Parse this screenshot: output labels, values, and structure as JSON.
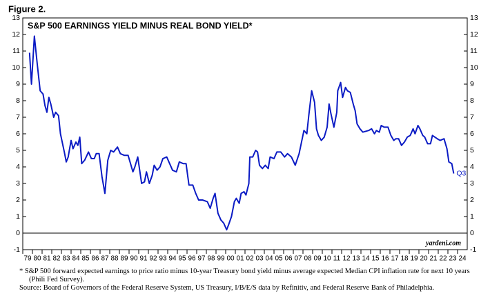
{
  "figure_label": "Figure 2.",
  "chart_data": {
    "type": "line",
    "title": "S&P 500 EARNINGS YIELD MINUS REAL BOND YIELD*",
    "annotation": "Q3",
    "watermark": "yardeni.com",
    "color": "#0b1bc4",
    "zero_line": true,
    "xlim": [
      1979,
      2025
    ],
    "ylim": [
      -1,
      13
    ],
    "yticks": [
      -1,
      0,
      1,
      2,
      3,
      4,
      5,
      6,
      7,
      8,
      9,
      10,
      11,
      12,
      13
    ],
    "xticks": [
      {
        "value": 1979,
        "label": "79"
      },
      {
        "value": 1980,
        "label": "80"
      },
      {
        "value": 1981,
        "label": "81"
      },
      {
        "value": 1982,
        "label": "82"
      },
      {
        "value": 1983,
        "label": "83"
      },
      {
        "value": 1984,
        "label": "84"
      },
      {
        "value": 1985,
        "label": "85"
      },
      {
        "value": 1986,
        "label": "86"
      },
      {
        "value": 1987,
        "label": "87"
      },
      {
        "value": 1988,
        "label": "88"
      },
      {
        "value": 1989,
        "label": "89"
      },
      {
        "value": 1990,
        "label": "90"
      },
      {
        "value": 1991,
        "label": "91"
      },
      {
        "value": 1992,
        "label": "92"
      },
      {
        "value": 1993,
        "label": "93"
      },
      {
        "value": 1994,
        "label": "94"
      },
      {
        "value": 1995,
        "label": "95"
      },
      {
        "value": 1996,
        "label": "96"
      },
      {
        "value": 1997,
        "label": "97"
      },
      {
        "value": 1998,
        "label": "98"
      },
      {
        "value": 1999,
        "label": "99"
      },
      {
        "value": 2000,
        "label": "00"
      },
      {
        "value": 2001,
        "label": "01"
      },
      {
        "value": 2002,
        "label": "02"
      },
      {
        "value": 2003,
        "label": "03"
      },
      {
        "value": 2004,
        "label": "04"
      },
      {
        "value": 2005,
        "label": "05"
      },
      {
        "value": 2006,
        "label": "06"
      },
      {
        "value": 2007,
        "label": "07"
      },
      {
        "value": 2008,
        "label": "08"
      },
      {
        "value": 2009,
        "label": "09"
      },
      {
        "value": 2010,
        "label": "10"
      },
      {
        "value": 2011,
        "label": "11"
      },
      {
        "value": 2012,
        "label": "12"
      },
      {
        "value": 2013,
        "label": "13"
      },
      {
        "value": 2014,
        "label": "14"
      },
      {
        "value": 2015,
        "label": "15"
      },
      {
        "value": 2016,
        "label": "16"
      },
      {
        "value": 2017,
        "label": "17"
      },
      {
        "value": 2018,
        "label": "18"
      },
      {
        "value": 2019,
        "label": "19"
      },
      {
        "value": 2020,
        "label": "20"
      },
      {
        "value": 2021,
        "label": "21"
      },
      {
        "value": 2022,
        "label": "22"
      },
      {
        "value": 2023,
        "label": "23"
      },
      {
        "value": 2024,
        "label": "24"
      }
    ],
    "x": [
      1979.7,
      1979.9,
      1980.2,
      1980.5,
      1980.8,
      1981.1,
      1981.3,
      1981.5,
      1981.7,
      1981.9,
      1982.2,
      1982.4,
      1982.7,
      1982.9,
      1983.3,
      1983.5,
      1983.7,
      1984.0,
      1984.2,
      1984.5,
      1984.7,
      1984.9,
      1985.1,
      1985.4,
      1985.8,
      1986.1,
      1986.4,
      1986.6,
      1986.9,
      1987.2,
      1987.5,
      1987.8,
      1988.1,
      1988.4,
      1988.8,
      1989.1,
      1989.5,
      1989.9,
      1990.4,
      1990.6,
      1990.9,
      1991.3,
      1991.6,
      1991.8,
      1992.1,
      1992.4,
      1992.6,
      1992.9,
      1993.2,
      1993.5,
      1993.9,
      1994.2,
      1994.5,
      1994.9,
      1995.2,
      1995.6,
      1995.9,
      1996.2,
      1996.6,
      1996.9,
      1997.2,
      1997.6,
      1998.1,
      1998.4,
      1998.7,
      1998.9,
      1999.2,
      1999.5,
      1999.8,
      2000.1,
      2000.3,
      2000.6,
      2000.9,
      2001.1,
      2001.4,
      2001.6,
      2001.9,
      2002.1,
      2002.4,
      2002.5,
      2002.8,
      2003.1,
      2003.3,
      2003.5,
      2003.8,
      2004.1,
      2004.4,
      2004.6,
      2005.0,
      2005.3,
      2005.7,
      2006.1,
      2006.4,
      2006.8,
      2007.2,
      2007.6,
      2008.1,
      2008.4,
      2008.6,
      2008.9,
      2009.2,
      2009.4,
      2009.6,
      2009.9,
      2010.2,
      2010.5,
      2010.7,
      2010.9,
      2011.2,
      2011.5,
      2011.6,
      2011.9,
      2012.1,
      2012.4,
      2012.6,
      2012.9,
      2013.2,
      2013.4,
      2013.6,
      2013.9,
      2014.2,
      2014.8,
      2015.1,
      2015.4,
      2015.6,
      2015.9,
      2016.1,
      2016.4,
      2016.8,
      2017.1,
      2017.4,
      2017.6,
      2017.9,
      2018.2,
      2018.5,
      2018.8,
      2019.1,
      2019.4,
      2019.6,
      2019.9,
      2020.1,
      2020.4,
      2020.6,
      2020.9,
      2021.2,
      2021.4,
      2021.9,
      2022.2,
      2022.6,
      2022.9,
      2023.1,
      2023.4,
      2023.6
    ],
    "values": [
      10.9,
      9.0,
      11.9,
      10.2,
      8.6,
      8.4,
      7.7,
      7.3,
      8.2,
      7.8,
      7.0,
      7.3,
      7.1,
      6.0,
      4.9,
      4.3,
      4.6,
      5.6,
      5.1,
      5.5,
      5.3,
      5.8,
      4.2,
      4.4,
      4.9,
      4.5,
      4.5,
      4.8,
      4.8,
      3.4,
      2.4,
      4.4,
      5.0,
      4.9,
      5.2,
      4.8,
      4.7,
      4.7,
      3.7,
      4.0,
      4.6,
      3.0,
      3.1,
      3.7,
      3.0,
      3.5,
      4.1,
      3.8,
      4.0,
      4.5,
      4.6,
      4.2,
      3.8,
      3.7,
      4.3,
      4.2,
      4.2,
      2.9,
      2.9,
      2.4,
      2.0,
      2.0,
      1.9,
      1.5,
      2.1,
      2.4,
      1.2,
      0.8,
      0.6,
      0.2,
      0.5,
      1.0,
      1.9,
      2.1,
      1.8,
      2.4,
      2.5,
      2.3,
      3.0,
      4.6,
      4.6,
      5.0,
      4.9,
      4.1,
      3.9,
      4.1,
      3.9,
      4.6,
      4.5,
      4.9,
      4.9,
      4.6,
      4.8,
      4.6,
      4.1,
      4.8,
      6.2,
      6.0,
      7.1,
      8.6,
      7.9,
      6.3,
      5.9,
      5.6,
      5.8,
      6.4,
      7.8,
      7.2,
      6.4,
      7.3,
      8.6,
      9.1,
      8.2,
      8.8,
      8.6,
      8.5,
      7.8,
      7.4,
      6.6,
      6.3,
      6.1,
      6.2,
      6.3,
      6.0,
      6.2,
      6.1,
      6.5,
      6.4,
      6.4,
      5.9,
      5.6,
      5.7,
      5.7,
      5.3,
      5.5,
      5.8,
      5.9,
      6.3,
      6.0,
      6.5,
      6.3,
      5.9,
      5.8,
      5.4,
      5.4,
      5.9,
      5.7,
      5.6,
      5.7,
      5.1,
      4.3,
      4.2,
      3.6
    ]
  },
  "footnotes": [
    "*  S&P 500 forward expected earnings to price ratio minus 10-year Treasury bond yield minus average expected Median CPI inflation rate for next 10 years (Phili Fed Survey).",
    "Source: Board of Governors of the Federal Reserve System, US Treasury, I/B/E/S data by Refinitiv, and Federal Reserve Bank of Philadelphia."
  ]
}
